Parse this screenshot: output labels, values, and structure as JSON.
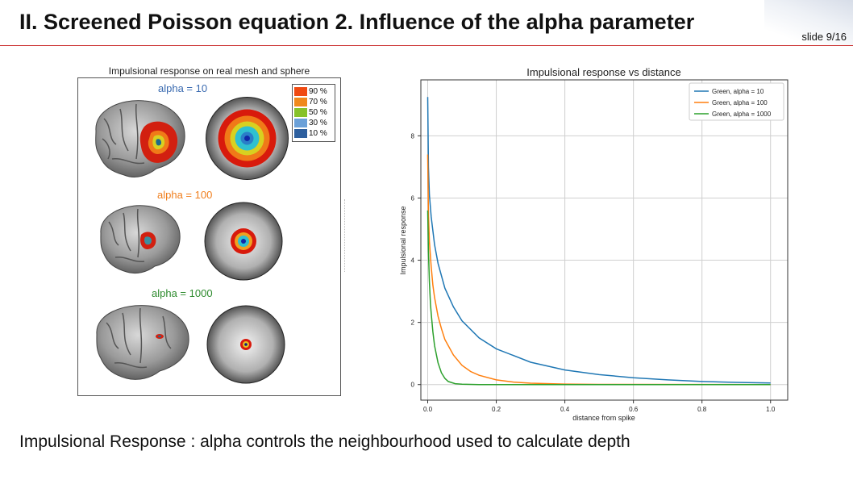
{
  "slide": {
    "title": "II. Screened Poisson equation 2. Influence of the alpha parameter",
    "number": "slide 9/16",
    "caption": "Impulsional Response : alpha controls the neighbourhood used to calculate depth"
  },
  "left_figure": {
    "title": "Impulsional response on real mesh and  sphere",
    "rows": [
      {
        "label": "alpha = 10",
        "color": "#3a6ab0"
      },
      {
        "label": "alpha = 100",
        "color": "#f07e1c"
      },
      {
        "label": "alpha = 1000",
        "color": "#2e8b2e"
      }
    ],
    "legend": [
      {
        "label": "90 %",
        "color": "#f04a12"
      },
      {
        "label": "70 %",
        "color": "#f0891c"
      },
      {
        "label": "50 %",
        "color": "#86c22a"
      },
      {
        "label": "30 %",
        "color": "#6aa0d8"
      },
      {
        "label": "10 %",
        "color": "#2d5f9e"
      }
    ]
  },
  "chart_data": {
    "type": "line",
    "title": "Impulsional response vs distance",
    "xlabel": "distance from spike",
    "ylabel": "Impulsional response",
    "xlim": [
      -0.02,
      1.05
    ],
    "ylim": [
      -0.5,
      9.8
    ],
    "xticks": [
      "0.0",
      "0.2",
      "0.4",
      "0.6",
      "0.8",
      "1.0"
    ],
    "xtick_values": [
      0.0,
      0.2,
      0.4,
      0.6,
      0.8,
      1.0
    ],
    "yticks": [
      "0",
      "2",
      "4",
      "6",
      "8"
    ],
    "ytick_values": [
      0,
      2,
      4,
      6,
      8
    ],
    "grid": true,
    "legend_position": "top-right",
    "series": [
      {
        "name": "Green, alpha = 10",
        "color": "#1f77b4",
        "x": [
          0.0,
          0.002,
          0.005,
          0.01,
          0.02,
          0.03,
          0.05,
          0.075,
          0.1,
          0.15,
          0.2,
          0.3,
          0.4,
          0.5,
          0.6,
          0.7,
          0.8,
          0.9,
          1.0
        ],
        "y": [
          9.25,
          7.0,
          6.1,
          5.4,
          4.5,
          3.9,
          3.1,
          2.5,
          2.05,
          1.5,
          1.15,
          0.72,
          0.47,
          0.32,
          0.22,
          0.15,
          0.1,
          0.07,
          0.05
        ]
      },
      {
        "name": "Green, alpha = 100",
        "color": "#ff7f0e",
        "x": [
          0.0,
          0.002,
          0.005,
          0.01,
          0.015,
          0.02,
          0.03,
          0.04,
          0.05,
          0.075,
          0.1,
          0.125,
          0.15,
          0.2,
          0.25,
          0.3,
          0.4,
          0.5,
          1.0
        ],
        "y": [
          7.4,
          5.5,
          4.6,
          3.8,
          3.2,
          2.8,
          2.2,
          1.8,
          1.45,
          0.95,
          0.62,
          0.42,
          0.3,
          0.15,
          0.08,
          0.045,
          0.015,
          0.005,
          0.0
        ]
      },
      {
        "name": "Green, alpha = 1000",
        "color": "#2ca02c",
        "x": [
          0.0,
          0.002,
          0.005,
          0.008,
          0.01,
          0.015,
          0.02,
          0.03,
          0.04,
          0.05,
          0.06,
          0.08,
          0.1,
          0.15,
          0.2,
          1.0
        ],
        "y": [
          5.6,
          4.3,
          3.3,
          2.6,
          2.3,
          1.7,
          1.25,
          0.7,
          0.38,
          0.2,
          0.1,
          0.03,
          0.01,
          0.0,
          0.0,
          0.0
        ]
      }
    ]
  }
}
